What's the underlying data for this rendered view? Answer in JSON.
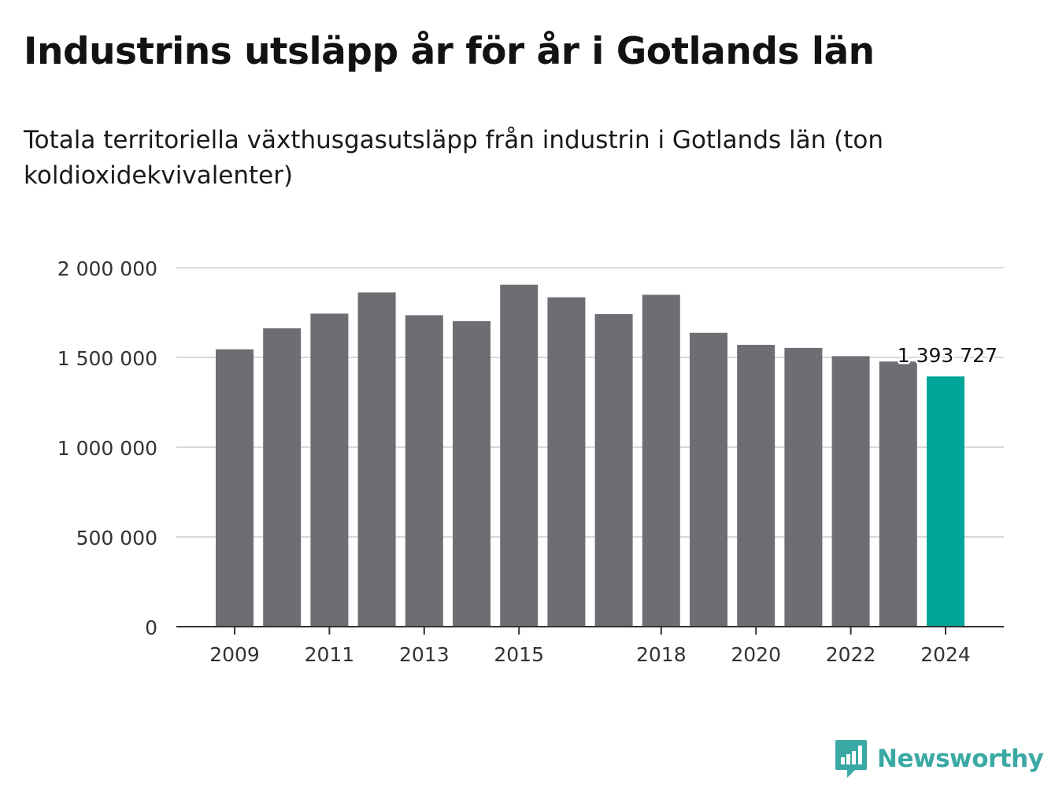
{
  "title": "Industrins utsläpp år för år i Gotlands län",
  "subtitle": "Totala territoriella växthusgasutsläpp från industrin i Gotlands län (ton koldioxidekvivalenter)",
  "brand": {
    "name": "Newsworthy",
    "logo_icon": "newsworthy-logo-icon",
    "color": "#3aa9a3"
  },
  "chart_data": {
    "type": "bar",
    "categories": [
      "2009",
      "2010",
      "2011",
      "2012",
      "2013",
      "2014",
      "2015",
      "2016",
      "2017",
      "2018",
      "2019",
      "2020",
      "2021",
      "2022",
      "2023",
      "2024"
    ],
    "values": [
      1545000,
      1662000,
      1744000,
      1862000,
      1735000,
      1702000,
      1905000,
      1835000,
      1741000,
      1849000,
      1637000,
      1570000,
      1553000,
      1507000,
      1477000,
      1393727
    ],
    "x_tick_labels": [
      "2009",
      "2011",
      "2013",
      "2015",
      "2018",
      "2020",
      "2022",
      "2024"
    ],
    "y_ticks": [
      0,
      500000,
      1000000,
      1500000,
      2000000
    ],
    "y_tick_labels": [
      "0",
      "500 000",
      "1 000 000",
      "1 500 000",
      "2 000 000"
    ],
    "ylim": [
      0,
      2000000
    ],
    "highlight": {
      "category": "2024",
      "label": "1 393 727"
    },
    "colors": {
      "bar": "#6e6d73",
      "highlight": "#00a59a",
      "grid": "#d9d9d9",
      "axis": "#333333"
    },
    "grid": true,
    "xlabel": "",
    "ylabel": ""
  }
}
